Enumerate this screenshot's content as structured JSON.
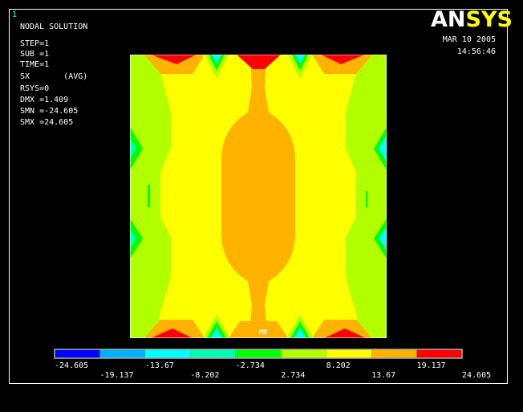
{
  "window_number": "1",
  "info": [
    "NODAL SOLUTION",
    "STEP=1",
    "SUB =1",
    "TIME=1",
    "SX       (AVG)",
    "RSYS=0",
    "DMX =1.409",
    "SMN =-24.605",
    "SMX =24.605"
  ],
  "logo": {
    "first": "AN",
    "second": "SYS"
  },
  "date": "MAR 10 2005",
  "time": "14:56:46",
  "min_marker": "MN",
  "legend": {
    "colors": [
      "#0000ff",
      "#00b2ff",
      "#00ffff",
      "#00ffb2",
      "#00ff00",
      "#b2ff00",
      "#ffff00",
      "#ffb200",
      "#ff0000"
    ],
    "ticks": [
      -24.605,
      -19.137,
      -13.67,
      -8.202,
      -2.734,
      2.734,
      8.202,
      13.67,
      19.137,
      24.605
    ]
  }
}
